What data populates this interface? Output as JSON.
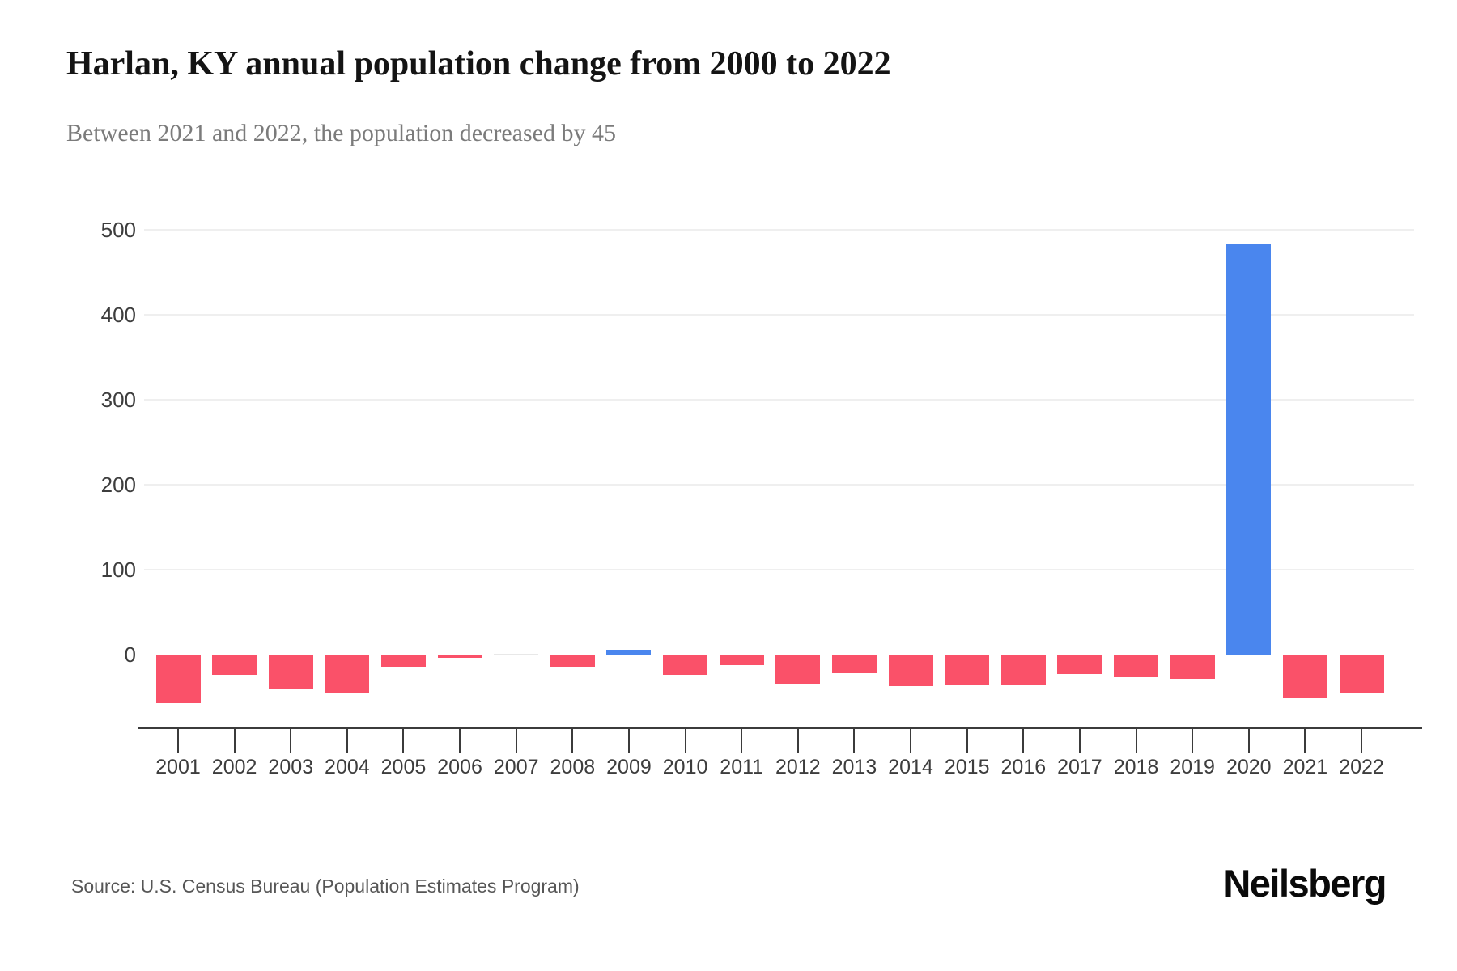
{
  "header": {
    "title_note": "bound from chart_data"
  },
  "footer": {
    "source": "Source: U.S. Census Bureau (Population Estimates Program)",
    "brand": "Neilsberg"
  },
  "chart_data": {
    "type": "bar",
    "title": "Harlan, KY annual population change from 2000 to 2022",
    "subtitle": "Between 2021 and 2022, the population decreased by 45",
    "categories": [
      "2001",
      "2002",
      "2003",
      "2004",
      "2005",
      "2006",
      "2007",
      "2008",
      "2009",
      "2010",
      "2011",
      "2012",
      "2013",
      "2014",
      "2015",
      "2016",
      "2017",
      "2018",
      "2019",
      "2020",
      "2021",
      "2022"
    ],
    "values": [
      -56,
      -23,
      -40,
      -44,
      -13,
      -3,
      0,
      -13,
      6,
      -23,
      -11,
      -33,
      -21,
      -36,
      -34,
      -34,
      -22,
      -26,
      -28,
      483,
      -50,
      -45
    ],
    "yticks": [
      0,
      100,
      200,
      300,
      400,
      500
    ],
    "ylim": [
      -87,
      530
    ],
    "xlabel": "",
    "ylabel": "",
    "grid": "horizontal",
    "legend": "none",
    "colors": {
      "positive": "#4a86ee",
      "negative": "#fa5169",
      "zero_bar": "#e8e8e8",
      "gridline": "#efefef",
      "axis": "#3b3b3b"
    }
  }
}
